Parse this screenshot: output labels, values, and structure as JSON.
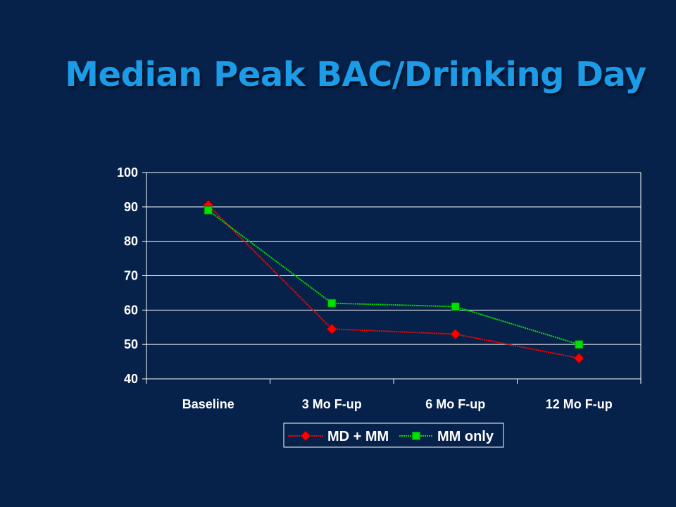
{
  "slide": {
    "title": "Median Peak BAC/Drinking Day"
  },
  "colors": {
    "background": "#06214a",
    "title": "#1c9be6",
    "grid": "#ffffff",
    "series1": "#ff0000",
    "series2": "#00e000"
  },
  "chart_data": {
    "type": "line",
    "title": "",
    "xlabel": "",
    "ylabel": "",
    "categories": [
      "Baseline",
      "3 Mo F-up",
      "6 Mo F-up",
      "12 Mo F-up"
    ],
    "ylim": [
      40,
      100
    ],
    "yticks": [
      40,
      50,
      60,
      70,
      80,
      90,
      100
    ],
    "grid": true,
    "legend_position": "bottom",
    "series": [
      {
        "name": "MD + MM",
        "values": [
          90.5,
          54.5,
          53,
          46
        ],
        "marker": "diamond",
        "color": "#ff0000"
      },
      {
        "name": "MM only",
        "values": [
          89,
          62,
          61,
          50
        ],
        "marker": "square",
        "color": "#00e000"
      }
    ]
  }
}
